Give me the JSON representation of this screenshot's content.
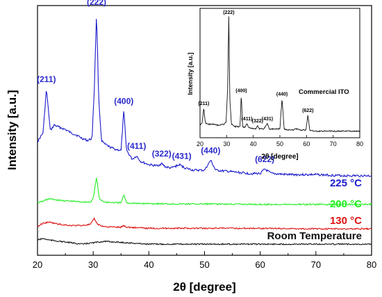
{
  "chart_data": [
    {
      "type": "line",
      "xlabel": "2θ [degree]",
      "ylabel": "Intensity [a.u.]",
      "xlim": [
        20,
        80
      ],
      "xticks": [
        20,
        30,
        40,
        50,
        60,
        70,
        80
      ],
      "y_tick_labels": "none",
      "series": [
        {
          "name": "225 °C",
          "color": "#1a1acc",
          "x": [
            20,
            21,
            21.6,
            22.3,
            23,
            24,
            25,
            26,
            27,
            28,
            29,
            29.8,
            30.2,
            30.6,
            31,
            31.5,
            32,
            33,
            34,
            35,
            35.5,
            36,
            37,
            37.8,
            38.5,
            40,
            41.5,
            42.3,
            43,
            44,
            45.5,
            46.5,
            48,
            50,
            51.1,
            52,
            54,
            56,
            58,
            60,
            60.8,
            62,
            65,
            70,
            75,
            80
          ],
          "y": [
            42,
            50,
            90,
            52,
            57,
            55,
            53,
            50,
            48,
            45,
            43,
            45,
            90,
            160,
            80,
            43,
            40,
            37,
            35,
            34,
            70,
            34,
            26,
            29,
            24,
            21,
            20,
            22,
            19,
            18,
            21,
            18,
            16,
            16,
            25,
            16,
            15,
            14,
            13,
            13,
            17,
            13,
            12,
            12,
            11,
            11
          ]
        },
        {
          "name": "200 °C",
          "color": "#22ee22",
          "x": [
            20,
            21,
            22,
            24,
            26,
            28,
            29.5,
            30,
            30.6,
            31.1,
            32,
            34,
            35,
            35.5,
            36,
            38,
            40,
            45,
            50,
            60,
            70,
            80
          ],
          "y": [
            3,
            5,
            8,
            6,
            5,
            4,
            4,
            8,
            35,
            8,
            4,
            3,
            3,
            13,
            3,
            2,
            2,
            1.5,
            1.5,
            1,
            1,
            1
          ]
        },
        {
          "name": "130 °C",
          "color": "#dd1111",
          "x": [
            20,
            21,
            22,
            24,
            26,
            28,
            29.5,
            30.2,
            30.8,
            32,
            34,
            35,
            35.5,
            36,
            38,
            40,
            45,
            50,
            60,
            70,
            80
          ],
          "y": [
            2,
            5,
            6,
            4,
            3,
            3,
            4,
            9,
            4,
            2,
            1.5,
            1.5,
            3,
            1.5,
            1,
            0.5,
            0.5,
            0.5,
            0.5,
            0,
            0
          ]
        },
        {
          "name": "Room Temperature",
          "color": "#111111",
          "x": [
            20,
            21,
            22,
            24,
            26,
            28,
            30,
            32,
            34,
            36,
            38,
            40,
            45,
            50,
            60,
            70,
            80
          ],
          "y": [
            3,
            4,
            3,
            2,
            1,
            0,
            1,
            2,
            1.5,
            1,
            0.5,
            0,
            0,
            0,
            0,
            0,
            0
          ]
        }
      ],
      "peak_labels": [
        {
          "text": "(211)",
          "x": 21.6
        },
        {
          "text": "(222)",
          "x": 30.6
        },
        {
          "text": "(400)",
          "x": 35.5
        },
        {
          "text": "(411)",
          "x": 37.8
        },
        {
          "text": "(322)",
          "x": 42.3
        },
        {
          "text": "(431)",
          "x": 45.9
        },
        {
          "text": "(440)",
          "x": 51.1
        },
        {
          "text": "(622)",
          "x": 60.8
        }
      ],
      "peak_label_color": "#2a2acc"
    },
    {
      "type": "line",
      "title": "Commercial ITO",
      "xlabel": "2θ [degree]",
      "ylabel": "Intensity [a.u.]",
      "xlim": [
        20,
        80
      ],
      "xticks": [
        20,
        30,
        40,
        50,
        60,
        70,
        80
      ],
      "series": [
        {
          "color": "#111111",
          "x": [
            20,
            20.8,
            21.4,
            22,
            23,
            25,
            27,
            29,
            29.8,
            30.4,
            30.8,
            31.2,
            31.8,
            33,
            35,
            35.5,
            36,
            37,
            37.6,
            38.2,
            40,
            41,
            41.6,
            42.2,
            44,
            45.3,
            46,
            48,
            50,
            50.8,
            51.6,
            53,
            55,
            56,
            58,
            59.8,
            60.5,
            61.2,
            63,
            65,
            68,
            70,
            75,
            80
          ],
          "y": [
            7,
            9,
            22,
            9,
            8,
            8,
            7,
            8,
            10,
            40,
            100,
            30,
            8,
            6,
            6,
            33,
            6,
            5,
            9,
            5,
            4,
            4,
            7,
            4,
            4,
            9,
            4,
            4,
            4,
            30,
            4,
            3,
            3,
            4,
            3,
            3,
            16,
            3,
            2,
            2,
            2,
            2,
            2,
            2
          ]
        }
      ],
      "peak_labels": [
        {
          "text": "(211)",
          "x": 21.4
        },
        {
          "text": "(222)",
          "x": 30.8
        },
        {
          "text": "(400)",
          "x": 35.5
        },
        {
          "text": "(411)",
          "x": 37.6
        },
        {
          "text": "(322)",
          "x": 41.6
        },
        {
          "text": "(431)",
          "x": 45.3
        },
        {
          "text": "(440)",
          "x": 50.8
        },
        {
          "text": "(622)",
          "x": 60.5
        }
      ]
    }
  ]
}
